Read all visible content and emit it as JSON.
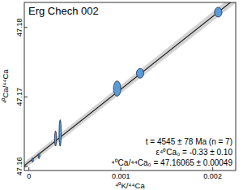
{
  "chart_data": {
    "type": "scatter",
    "title": "Erg Chech 002",
    "x_label": "⁴⁰K/⁴⁴Ca",
    "y_label": "⁴⁰Ca/⁴⁴Ca",
    "annotations": [
      "t = 4545 ± 78 Ma (n = 7)",
      "ε⁴⁰Ca₀ = -0.33 ± 0.10",
      "⁴⁰Ca/⁴⁴Ca₀ = 47.16065 ± 0.00049"
    ],
    "xlim": [
      -5e-05,
      0.00225
    ],
    "ylim": [
      47.1594,
      47.1836
    ],
    "xticks": [
      0,
      0.001,
      0.002
    ],
    "yticks": [
      47.16,
      47.17,
      47.18
    ],
    "series": [
      {
        "name": "Erg Chech 002",
        "color": "#5b9bd5",
        "marker": "ellipse",
        "x": [
          4e-05,
          0.00011,
          0.00029,
          0.00034,
          0.00096,
          0.00121,
          0.00206
        ],
        "values": [
          47.1609,
          47.1615,
          47.164,
          47.1648,
          47.1712,
          47.1734,
          47.1822
        ],
        "x_errors": [
          8e-06,
          8e-06,
          1e-05,
          1.2e-05,
          4e-05,
          4e-05,
          4e-05
        ],
        "errors": [
          0.0003,
          0.0004,
          0.0011,
          0.0019,
          0.0011,
          0.0007,
          0.0007
        ]
      }
    ],
    "fit_line": {
      "color": "#222222",
      "x": [
        -5e-05,
        0.00225
      ],
      "y": [
        47.1601,
        47.1842
      ],
      "lower": [
        47.1596,
        47.1835
      ],
      "upper": [
        47.1606,
        47.1849
      ]
    }
  }
}
